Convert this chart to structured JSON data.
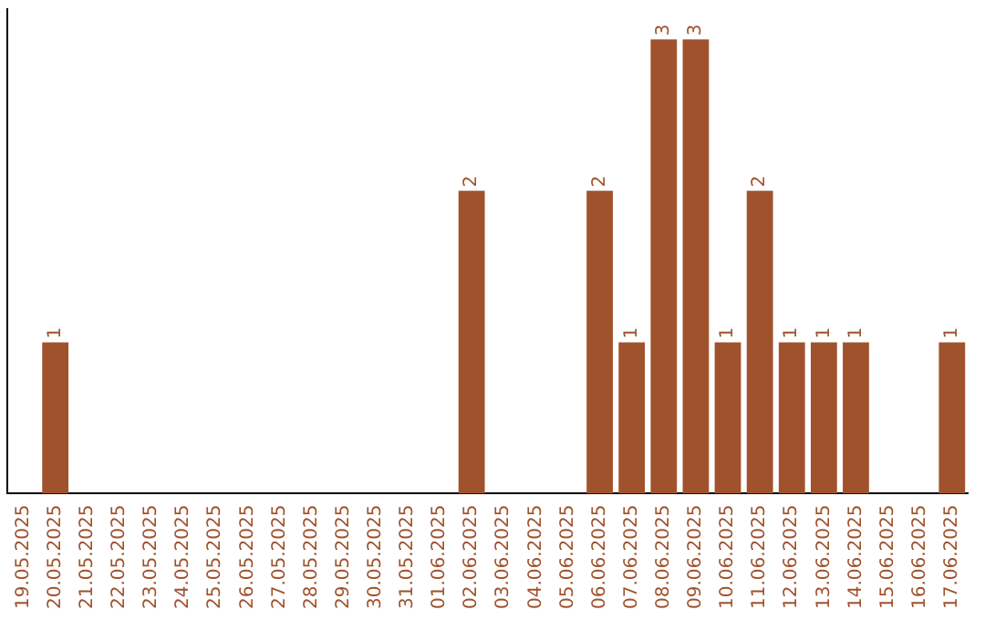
{
  "chart_data": {
    "type": "bar",
    "categories": [
      "19.05.2025",
      "20.05.2025",
      "21.05.2025",
      "22.05.2025",
      "23.05.2025",
      "24.05.2025",
      "25.05.2025",
      "26.05.2025",
      "27.05.2025",
      "28.05.2025",
      "29.05.2025",
      "30.05.2025",
      "31.05.2025",
      "01.06.2025",
      "02.06.2025",
      "03.06.2025",
      "04.06.2025",
      "05.06.2025",
      "06.06.2025",
      "07.06.2025",
      "08.06.2025",
      "09.06.2025",
      "10.06.2025",
      "11.06.2025",
      "12.06.2025",
      "13.06.2025",
      "14.06.2025",
      "15.06.2025",
      "16.06.2025",
      "17.06.2025"
    ],
    "values": [
      0,
      1,
      0,
      0,
      0,
      0,
      0,
      0,
      0,
      0,
      0,
      0,
      0,
      0,
      2,
      0,
      0,
      0,
      2,
      1,
      3,
      3,
      1,
      2,
      1,
      1,
      1,
      0,
      0,
      1
    ],
    "value_labels": [
      null,
      "1",
      null,
      null,
      null,
      null,
      null,
      null,
      null,
      null,
      null,
      null,
      null,
      null,
      "2",
      null,
      null,
      null,
      "2",
      "1",
      "3",
      "3",
      "1",
      "2",
      "1",
      "1",
      "1",
      null,
      null,
      "1"
    ],
    "color": "#a0522d",
    "ylim": [
      0,
      3.2
    ],
    "tick_labels": "x",
    "grid": false,
    "legend": false
  }
}
